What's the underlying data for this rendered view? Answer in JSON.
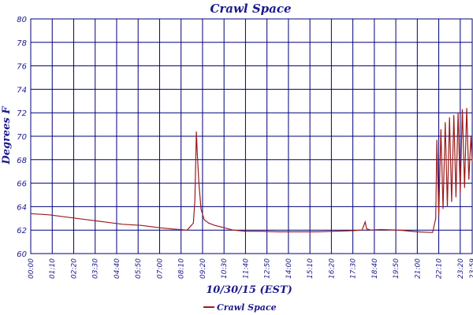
{
  "chart_data": {
    "type": "line",
    "title": "Crawl Space",
    "xlabel": "10/30/15 (EST)",
    "ylabel": "Degrees F",
    "ylim": [
      60,
      80
    ],
    "yticks": [
      60,
      62,
      64,
      66,
      68,
      70,
      72,
      74,
      76,
      78,
      80
    ],
    "xlim_minutes": [
      0,
      1439
    ],
    "xticks": [
      "00:00",
      "01:10",
      "02:20",
      "03:30",
      "04:40",
      "05:50",
      "07:00",
      "08:10",
      "09:20",
      "10:30",
      "11:40",
      "12:50",
      "14:00",
      "15:10",
      "16:20",
      "17:30",
      "18:40",
      "19:50",
      "21:00",
      "22:10",
      "23:20",
      "23:59"
    ],
    "grid": true,
    "legend_position": "bottom",
    "colors": {
      "series": "#9b1c1c",
      "grid": "#00007a",
      "text": "#1a1a8c"
    },
    "series": [
      {
        "name": "Crawl Space",
        "points": [
          [
            "00:00",
            63.4
          ],
          [
            "01:00",
            63.3
          ],
          [
            "02:00",
            63.1
          ],
          [
            "03:00",
            62.9
          ],
          [
            "04:00",
            62.7
          ],
          [
            "05:00",
            62.5
          ],
          [
            "06:00",
            62.4
          ],
          [
            "07:00",
            62.2
          ],
          [
            "07:40",
            62.1
          ],
          [
            "08:30",
            62.0
          ],
          [
            "08:40",
            62.3
          ],
          [
            "08:50",
            62.6
          ],
          [
            "08:55",
            64.5
          ],
          [
            "09:00",
            70.4
          ],
          [
            "09:03",
            68.5
          ],
          [
            "09:08",
            66.0
          ],
          [
            "09:15",
            63.8
          ],
          [
            "09:25",
            62.9
          ],
          [
            "09:40",
            62.6
          ],
          [
            "10:00",
            62.4
          ],
          [
            "10:30",
            62.2
          ],
          [
            "11:00",
            62.0
          ],
          [
            "11:40",
            61.9
          ],
          [
            "12:30",
            61.9
          ],
          [
            "13:30",
            61.85
          ],
          [
            "14:30",
            61.85
          ],
          [
            "15:30",
            61.85
          ],
          [
            "16:30",
            61.9
          ],
          [
            "17:30",
            61.95
          ],
          [
            "18:00",
            62.0
          ],
          [
            "18:10",
            62.7
          ],
          [
            "18:15",
            62.1
          ],
          [
            "18:30",
            62.0
          ],
          [
            "19:00",
            62.05
          ],
          [
            "20:00",
            62.0
          ],
          [
            "21:00",
            61.85
          ],
          [
            "21:45",
            61.8
          ],
          [
            "21:50",
            61.8
          ],
          [
            "22:00",
            63.0
          ],
          [
            "22:04",
            69.7
          ],
          [
            "22:10",
            63.3
          ],
          [
            "22:17",
            70.6
          ],
          [
            "22:24",
            63.8
          ],
          [
            "22:31",
            71.2
          ],
          [
            "22:38",
            64.0
          ],
          [
            "22:45",
            71.6
          ],
          [
            "22:52",
            64.4
          ],
          [
            "22:59",
            71.8
          ],
          [
            "23:06",
            64.8
          ],
          [
            "23:13",
            72.0
          ],
          [
            "23:20",
            65.2
          ],
          [
            "23:27",
            72.3
          ],
          [
            "23:34",
            65.6
          ],
          [
            "23:41",
            72.4
          ],
          [
            "23:48",
            66.3
          ],
          [
            "23:55",
            70.0
          ],
          [
            "23:59",
            67.8
          ]
        ]
      }
    ]
  }
}
